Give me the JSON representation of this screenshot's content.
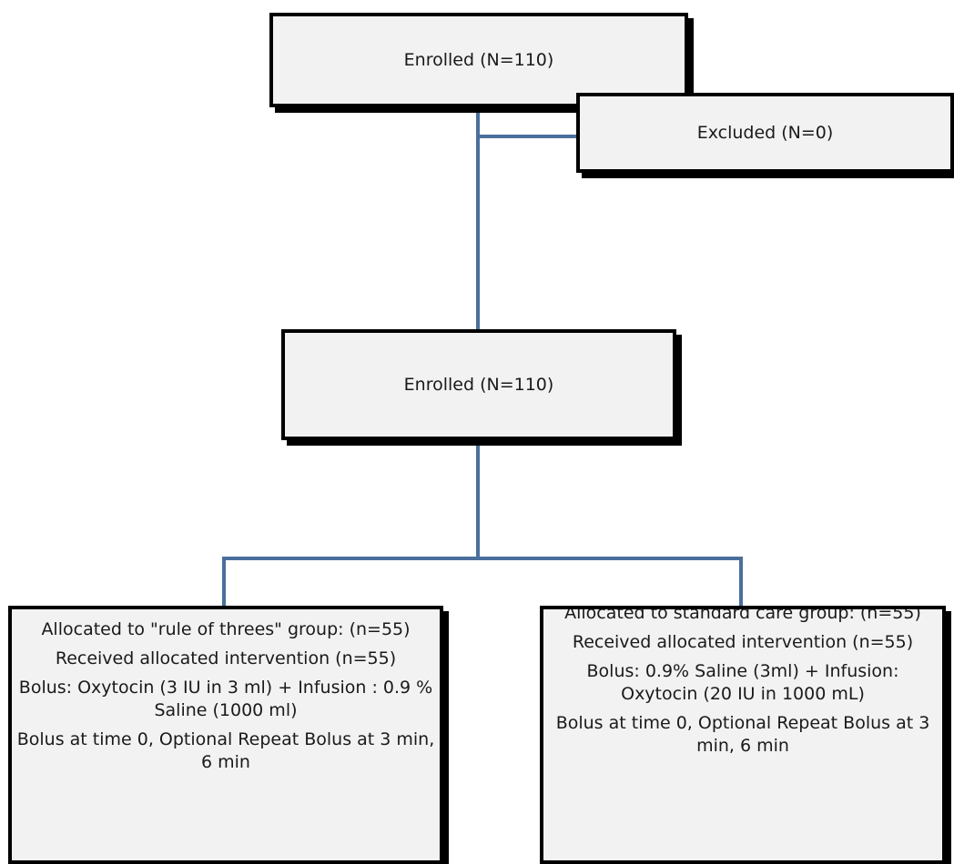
{
  "top_box": {
    "label": "Enrolled (N=110)"
  },
  "excluded_box": {
    "label": "Excluded (N=0)"
  },
  "middle_box": {
    "label": "Enrolled (N=110)"
  },
  "left_arm": {
    "paragraphs": [
      "Allocated to \"rule of threes\" group: (n=55)",
      "Received allocated intervention (n=55)",
      "Bolus: Oxytocin (3 IU in 3 ml) + Infusion : 0.9 % Saline (1000 ml)",
      "Bolus at time 0, Optional Repeat Bolus at 3 min, 6 min"
    ]
  },
  "right_arm": {
    "paragraphs": [
      "Allocated to standard care group: (n=55)",
      "Received allocated intervention (n=55)",
      "Bolus: 0.9% Saline (3ml) + Infusion: Oxytocin (20 IU in 1000 mL)",
      "Bolus at time 0, Optional Repeat Bolus at 3 min, 6 min"
    ]
  },
  "colors": {
    "connector": "#4a6f9c",
    "box_fill": "#f2f2f2",
    "box_border": "#000000"
  }
}
